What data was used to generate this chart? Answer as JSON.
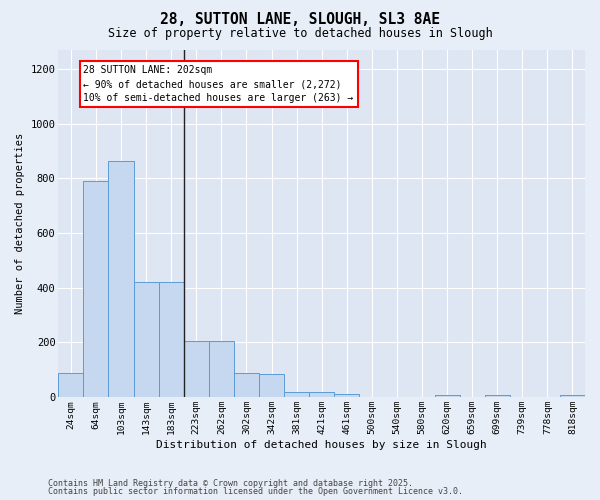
{
  "title1": "28, SUTTON LANE, SLOUGH, SL3 8AE",
  "title2": "Size of property relative to detached houses in Slough",
  "xlabel": "Distribution of detached houses by size in Slough",
  "ylabel": "Number of detached properties",
  "categories": [
    "24sqm",
    "64sqm",
    "103sqm",
    "143sqm",
    "183sqm",
    "223sqm",
    "262sqm",
    "302sqm",
    "342sqm",
    "381sqm",
    "421sqm",
    "461sqm",
    "500sqm",
    "540sqm",
    "580sqm",
    "620sqm",
    "659sqm",
    "699sqm",
    "739sqm",
    "778sqm",
    "818sqm"
  ],
  "values": [
    90,
    790,
    865,
    420,
    420,
    205,
    205,
    90,
    85,
    18,
    18,
    10,
    0,
    0,
    0,
    8,
    0,
    8,
    0,
    0,
    8
  ],
  "bar_color": "#c5d8ef",
  "bar_edge_color": "#5b9bd5",
  "vline_color": "#222222",
  "annotation_text": "28 SUTTON LANE: 202sqm\n← 90% of detached houses are smaller (2,272)\n10% of semi-detached houses are larger (263) →",
  "vline_pos": 4.5,
  "ylim": [
    0,
    1270
  ],
  "yticks": [
    0,
    200,
    400,
    600,
    800,
    1000,
    1200
  ],
  "bg_color": "#dde6f2",
  "fig_bg_color": "#e8eef7",
  "grid_color": "#ffffff",
  "footer1": "Contains HM Land Registry data © Crown copyright and database right 2025.",
  "footer2": "Contains public sector information licensed under the Open Government Licence v3.0."
}
